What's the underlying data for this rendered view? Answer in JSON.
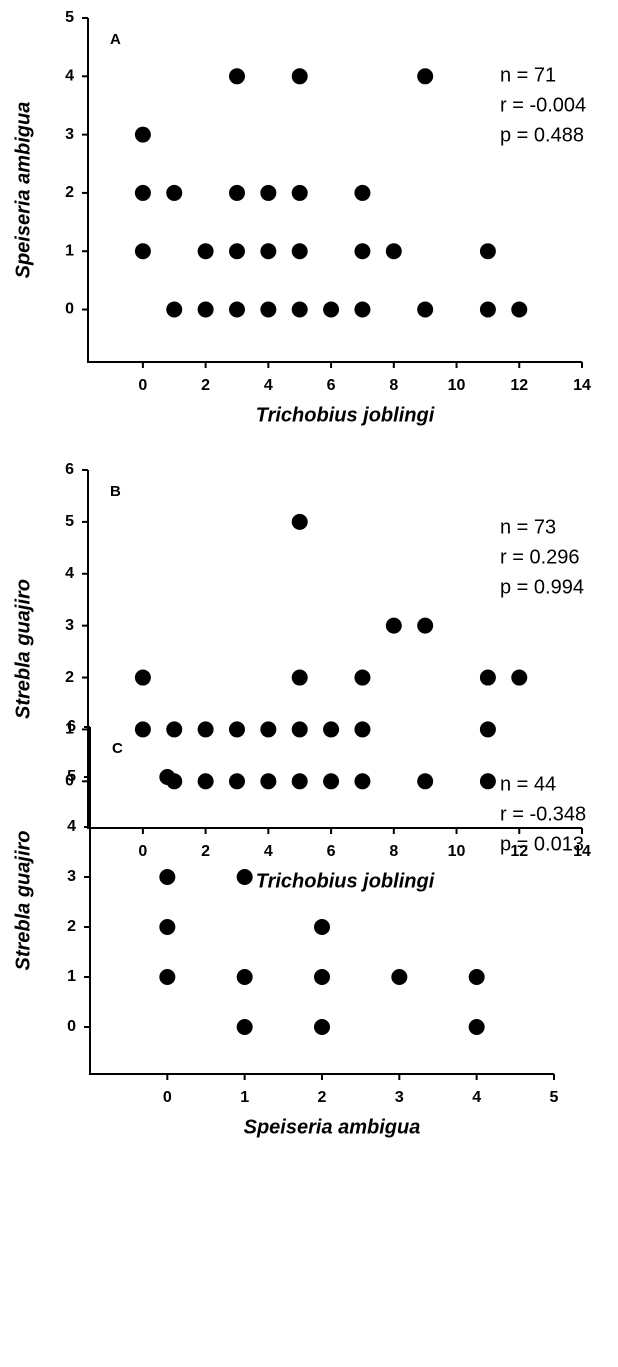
{
  "chart_data": [
    {
      "type": "scatter",
      "panel_label": "A",
      "x_label": "Trichobius joblingi",
      "y_label": "Speiseria ambigua",
      "annotations": [
        "n = 71",
        "r = -0.004",
        "p = 0.488"
      ],
      "color": "#000000",
      "x": [
        3,
        5,
        9,
        0,
        0,
        1,
        3,
        4,
        5,
        7,
        0,
        2,
        3,
        4,
        5,
        7,
        8,
        11,
        1,
        2,
        3,
        4,
        5,
        6,
        7,
        9,
        11,
        12
      ],
      "y": [
        4,
        4,
        4,
        3,
        2,
        2,
        2,
        2,
        2,
        2,
        1,
        1,
        1,
        1,
        1,
        1,
        1,
        1,
        0,
        0,
        0,
        0,
        0,
        0,
        0,
        0,
        0,
        0
      ],
      "xlim": [
        -1.75,
        14
      ],
      "xticks": [
        0,
        2,
        4,
        6,
        8,
        10,
        12,
        14
      ],
      "ylim": [
        -0.9,
        5
      ],
      "yticks": [
        0,
        1,
        2,
        3,
        4,
        5
      ]
    },
    {
      "type": "scatter",
      "panel_label": "B",
      "x_label": "Trichobius joblingi",
      "y_label": "Strebla guajiro",
      "annotations": [
        "n = 73",
        "r = 0.296",
        "p = 0.994"
      ],
      "color": "#000000",
      "x": [
        5,
        8,
        9,
        0,
        5,
        7,
        11,
        12,
        0,
        1,
        2,
        3,
        4,
        5,
        6,
        7,
        11,
        1,
        2,
        3,
        4,
        5,
        6,
        7,
        9,
        11
      ],
      "y": [
        5,
        3,
        3,
        2,
        2,
        2,
        2,
        2,
        1,
        1,
        1,
        1,
        1,
        1,
        1,
        1,
        1,
        0,
        0,
        0,
        0,
        0,
        0,
        0,
        0,
        0
      ],
      "xlim": [
        -1.75,
        14
      ],
      "xticks": [
        0,
        2,
        4,
        6,
        8,
        10,
        12,
        14
      ],
      "ylim": [
        -0.9,
        6
      ],
      "yticks": [
        0,
        1,
        2,
        3,
        4,
        5,
        6
      ]
    },
    {
      "type": "scatter",
      "panel_label": "C",
      "x_label": "Speiseria ambigua",
      "y_label": "Strebla guajiro",
      "annotations": [
        "n = 44",
        "r = -0.348",
        "p = 0.013"
      ],
      "color": "#000000",
      "x": [
        0,
        0,
        0,
        0,
        1,
        1,
        1,
        2,
        2,
        2,
        3,
        4,
        4
      ],
      "y": [
        5,
        3,
        2,
        1,
        3,
        1,
        0,
        2,
        1,
        0,
        1,
        1,
        0
      ],
      "xlim": [
        -1,
        5
      ],
      "xticks": [
        0,
        1,
        2,
        3,
        4,
        5
      ],
      "ylim": [
        -0.94,
        6
      ],
      "yticks": [
        0,
        1,
        2,
        3,
        4,
        5,
        6
      ]
    }
  ]
}
